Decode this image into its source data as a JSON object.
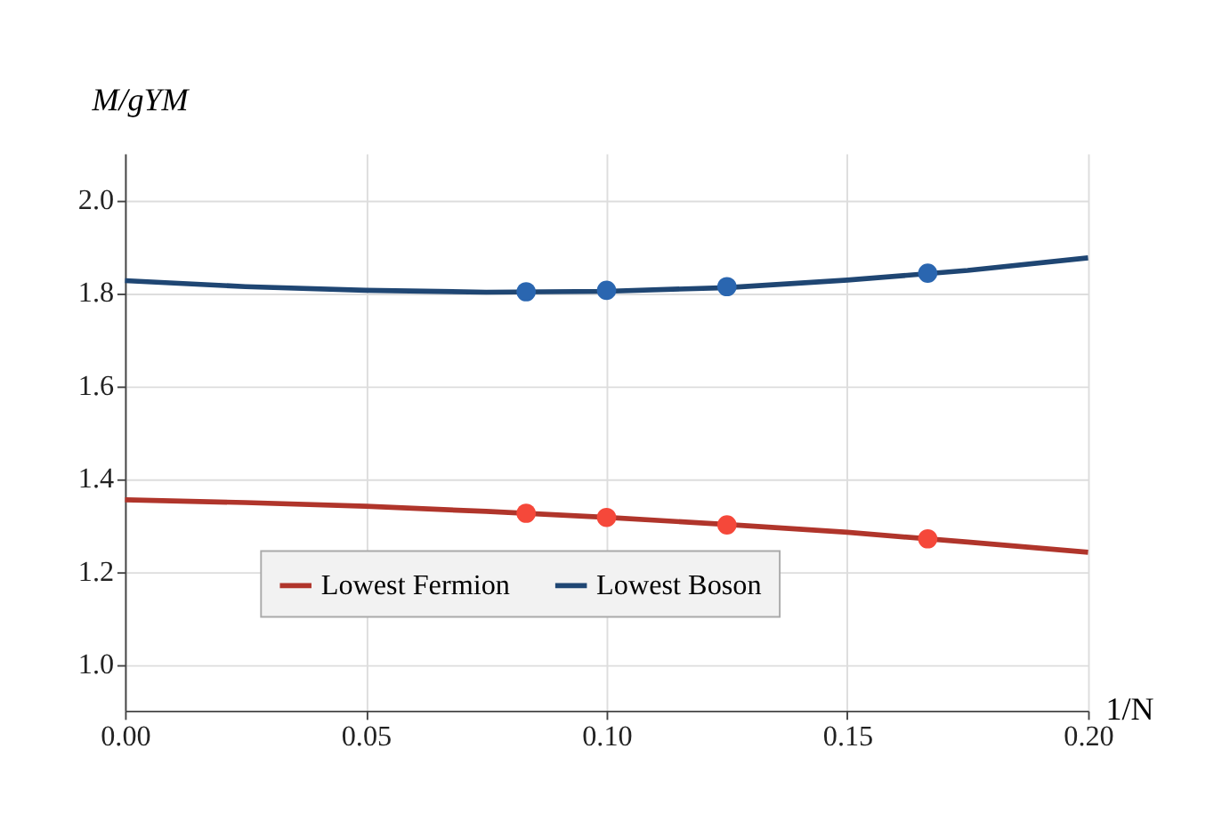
{
  "chart_data": {
    "type": "line",
    "xlabel": "1/N",
    "ylabel": "M/gYM",
    "series": [
      {
        "name": "Lowest Fermion",
        "color": "#b0352b",
        "x": [
          0,
          0.025,
          0.05,
          0.075,
          0.1,
          0.125,
          0.15,
          0.175,
          0.2
        ],
        "values": [
          1.354,
          1.348,
          1.34,
          1.329,
          1.316,
          1.301,
          1.284,
          1.263,
          1.241
        ]
      },
      {
        "name": "Lowest Boson",
        "color": "#1f4673",
        "x": [
          0,
          0.025,
          0.05,
          0.075,
          0.1,
          0.125,
          0.15,
          0.175,
          0.2
        ],
        "values": [
          1.826,
          1.813,
          1.805,
          1.801,
          1.803,
          1.811,
          1.827,
          1.848,
          1.875
        ]
      },
      {
        "type": "scatter",
        "marker": "circle",
        "color": "#f5483a",
        "x": [
          0.0833,
          0.1,
          0.125,
          0.1667
        ],
        "values": [
          1.325,
          1.316,
          1.3,
          1.27
        ]
      },
      {
        "type": "scatter",
        "marker": "circle",
        "color": "#2a66b0",
        "x": [
          0.0833,
          0.1,
          0.125,
          0.1667
        ],
        "values": [
          1.802,
          1.805,
          1.813,
          1.842
        ]
      }
    ],
    "xlim": [
      0,
      0.2
    ],
    "ylim": [
      0.9,
      2.1
    ],
    "xticks": [
      {
        "value": 0,
        "label": "0.00"
      },
      {
        "value": 0.05,
        "label": "0.05"
      },
      {
        "value": 0.1,
        "label": "0.10"
      },
      {
        "value": 0.15,
        "label": "0.15"
      },
      {
        "value": 0.2,
        "label": "0.20"
      }
    ],
    "yticks": [
      {
        "value": 1.0,
        "label": "1.0"
      },
      {
        "value": 1.2,
        "label": "1.2"
      },
      {
        "value": 1.4,
        "label": "1.4"
      },
      {
        "value": 1.6,
        "label": "1.6"
      },
      {
        "value": 1.8,
        "label": "1.8"
      },
      {
        "value": 2.0,
        "label": "2.0"
      }
    ],
    "grid": true,
    "legend": "bottom",
    "line_style": "solid"
  }
}
